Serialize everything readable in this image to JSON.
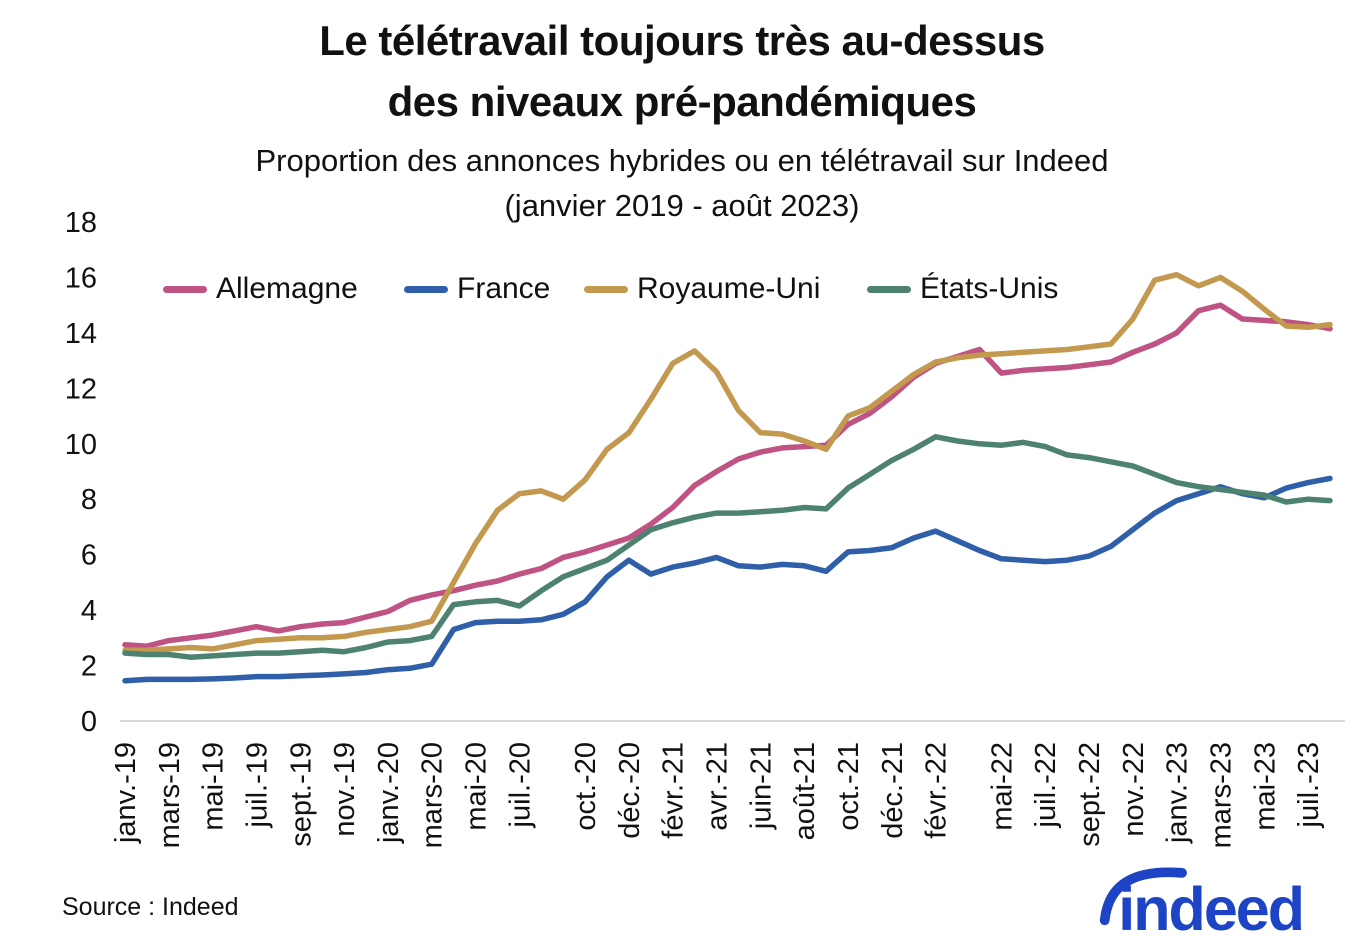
{
  "header": {
    "title_line1": "Le télétravail toujours très au-dessus",
    "title_line2": "des niveaux pré-pandémiques",
    "subtitle_line1": "Proportion des annonces hybrides ou en télétravail sur Indeed",
    "subtitle_line2": "(janvier 2019 - août 2023)"
  },
  "source": "Source : Indeed",
  "logo": {
    "text": "indeed",
    "color": "#1c44c4"
  },
  "colors": {
    "axis_line": "#d9d9d9",
    "text": "#111111"
  },
  "chart_data": {
    "type": "line",
    "title": "Le télétravail toujours très au-dessus des niveaux pré-pandémiques",
    "subtitle": "Proportion des annonces hybrides ou en télétravail sur Indeed (janvier 2019 - août 2023)",
    "x_start": "janvier 2019",
    "x_end": "août 2023",
    "x_unit": "month",
    "n_points": 56,
    "ylim": [
      0,
      18
    ],
    "y_ticks": [
      0,
      2,
      4,
      6,
      8,
      10,
      12,
      14,
      16,
      18
    ],
    "grid": false,
    "legend_position": "top-inside",
    "x_tick_labels": [
      "janv.-19",
      "mars-19",
      "mai-19",
      "juil.-19",
      "sept.-19",
      "nov.-19",
      "janv.-20",
      "mars-20",
      "mai-20",
      "juil.-20",
      "oct.-20",
      "déc.-20",
      "févr.-21",
      "avr.-21",
      "juin-21",
      "août-21",
      "oct.-21",
      "déc.-21",
      "févr.-22",
      "mai-22",
      "juil.-22",
      "sept.-22",
      "nov.-22",
      "janv.-23",
      "mars-23",
      "mai-23",
      "juil.-23"
    ],
    "x_tick_month_index": [
      0,
      2,
      4,
      6,
      8,
      10,
      12,
      14,
      16,
      18,
      21,
      23,
      25,
      27,
      29,
      31,
      33,
      35,
      37,
      40,
      42,
      44,
      46,
      48,
      50,
      52,
      54
    ],
    "series": [
      {
        "name": "Allemagne",
        "color": "#bf5384",
        "values": [
          2.75,
          2.7,
          2.9,
          3.0,
          3.1,
          3.25,
          3.4,
          3.25,
          3.4,
          3.5,
          3.55,
          3.75,
          3.95,
          4.35,
          4.55,
          4.7,
          4.9,
          5.05,
          5.3,
          5.5,
          5.9,
          6.1,
          6.35,
          6.6,
          7.1,
          7.7,
          8.5,
          9.0,
          9.45,
          9.7,
          9.85,
          9.9,
          9.95,
          10.7,
          11.1,
          11.7,
          12.4,
          12.9,
          13.15,
          13.4,
          12.55,
          12.65,
          12.7,
          12.75,
          12.85,
          12.95,
          13.3,
          13.6,
          14.0,
          14.8,
          15.0,
          14.5,
          14.45,
          14.4,
          14.3,
          14.15
        ]
      },
      {
        "name": "France",
        "color": "#2f5fa8",
        "values": [
          1.45,
          1.5,
          1.5,
          1.5,
          1.52,
          1.55,
          1.6,
          1.6,
          1.63,
          1.66,
          1.7,
          1.75,
          1.85,
          1.9,
          2.05,
          3.3,
          3.55,
          3.6,
          3.6,
          3.65,
          3.85,
          4.3,
          5.2,
          5.8,
          5.3,
          5.55,
          5.7,
          5.9,
          5.6,
          5.55,
          5.65,
          5.6,
          5.4,
          6.1,
          6.15,
          6.25,
          6.6,
          6.85,
          6.5,
          6.15,
          5.85,
          5.8,
          5.75,
          5.8,
          5.95,
          6.3,
          6.9,
          7.5,
          7.95,
          8.2,
          8.45,
          8.2,
          8.05,
          8.4,
          8.6,
          8.75
        ]
      },
      {
        "name": "Royaume-Uni",
        "color": "#c3984f",
        "values": [
          2.55,
          2.55,
          2.6,
          2.65,
          2.6,
          2.75,
          2.9,
          2.95,
          3.0,
          3.0,
          3.05,
          3.2,
          3.3,
          3.4,
          3.6,
          5.0,
          6.4,
          7.6,
          8.2,
          8.3,
          8.0,
          8.7,
          9.8,
          10.4,
          11.6,
          12.9,
          13.35,
          12.6,
          11.2,
          10.4,
          10.35,
          10.1,
          9.8,
          11.0,
          11.3,
          11.9,
          12.5,
          12.95,
          13.1,
          13.2,
          13.25,
          13.3,
          13.35,
          13.4,
          13.5,
          13.6,
          14.5,
          15.9,
          16.1,
          15.7,
          16.0,
          15.5,
          14.85,
          14.25,
          14.2,
          14.3
        ]
      },
      {
        "name": "États-Unis",
        "color": "#4e8270",
        "values": [
          2.45,
          2.4,
          2.4,
          2.3,
          2.35,
          2.4,
          2.45,
          2.45,
          2.5,
          2.55,
          2.5,
          2.65,
          2.85,
          2.9,
          3.05,
          4.2,
          4.3,
          4.35,
          4.15,
          4.7,
          5.2,
          5.5,
          5.8,
          6.35,
          6.9,
          7.15,
          7.35,
          7.5,
          7.5,
          7.55,
          7.6,
          7.7,
          7.65,
          8.4,
          8.9,
          9.4,
          9.8,
          10.25,
          10.1,
          10.0,
          9.95,
          10.05,
          9.9,
          9.6,
          9.5,
          9.35,
          9.2,
          8.9,
          8.6,
          8.45,
          8.35,
          8.25,
          8.15,
          7.9,
          8.0,
          7.95
        ]
      }
    ]
  }
}
